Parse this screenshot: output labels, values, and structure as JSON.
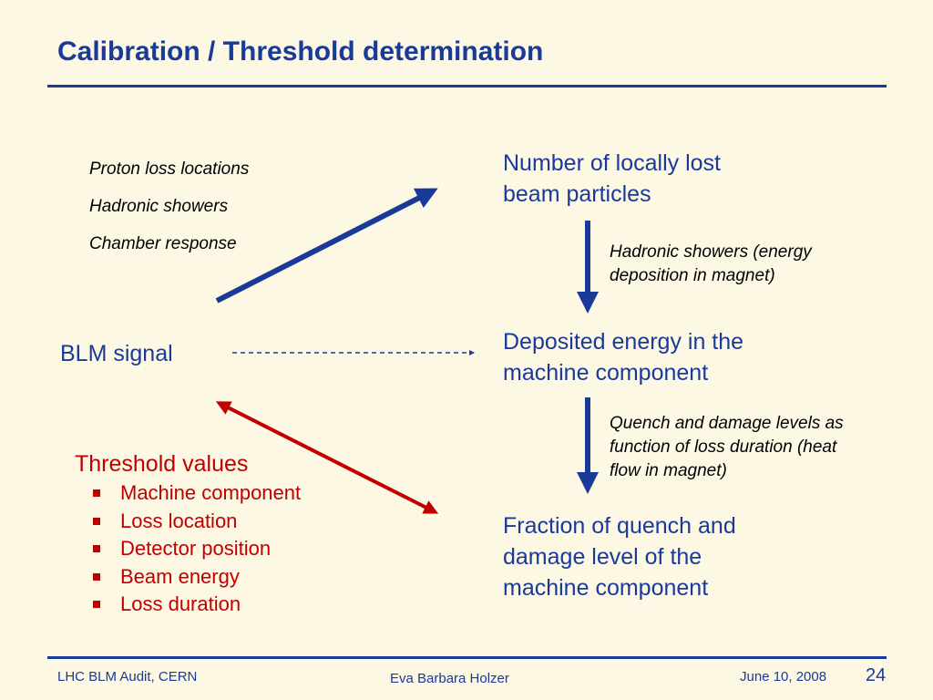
{
  "slide": {
    "title": "Calibration / Threshold determination"
  },
  "calibration_steps": [
    "Proton loss locations",
    "Hadronic showers",
    "Chamber response"
  ],
  "blm_signal": "BLM signal",
  "targets": {
    "number": [
      "Number of locally lost",
      "beam particles"
    ],
    "deposited": [
      "Deposited energy in the",
      "machine component"
    ],
    "fraction": [
      "Fraction of quench and",
      "damage level of the",
      "machine component"
    ]
  },
  "notes": {
    "hadronic": [
      "Hadronic showers (energy",
      "deposition in magnet)"
    ],
    "quench": [
      "Quench and damage levels as",
      "function of loss duration (heat",
      "flow in magnet)"
    ]
  },
  "threshold": {
    "title": "Threshold values",
    "items": [
      "Machine component",
      "Loss location",
      "Detector position",
      "Beam energy",
      "Loss duration"
    ]
  },
  "colors": {
    "background": "#fdf8e4",
    "primary_blue": "#1a3a9a",
    "threshold_red": "#c00000"
  },
  "footer": {
    "left": "LHC BLM Audit, CERN",
    "center": "Eva Barbara Holzer",
    "date": "June 10, 2008",
    "page": "24"
  }
}
